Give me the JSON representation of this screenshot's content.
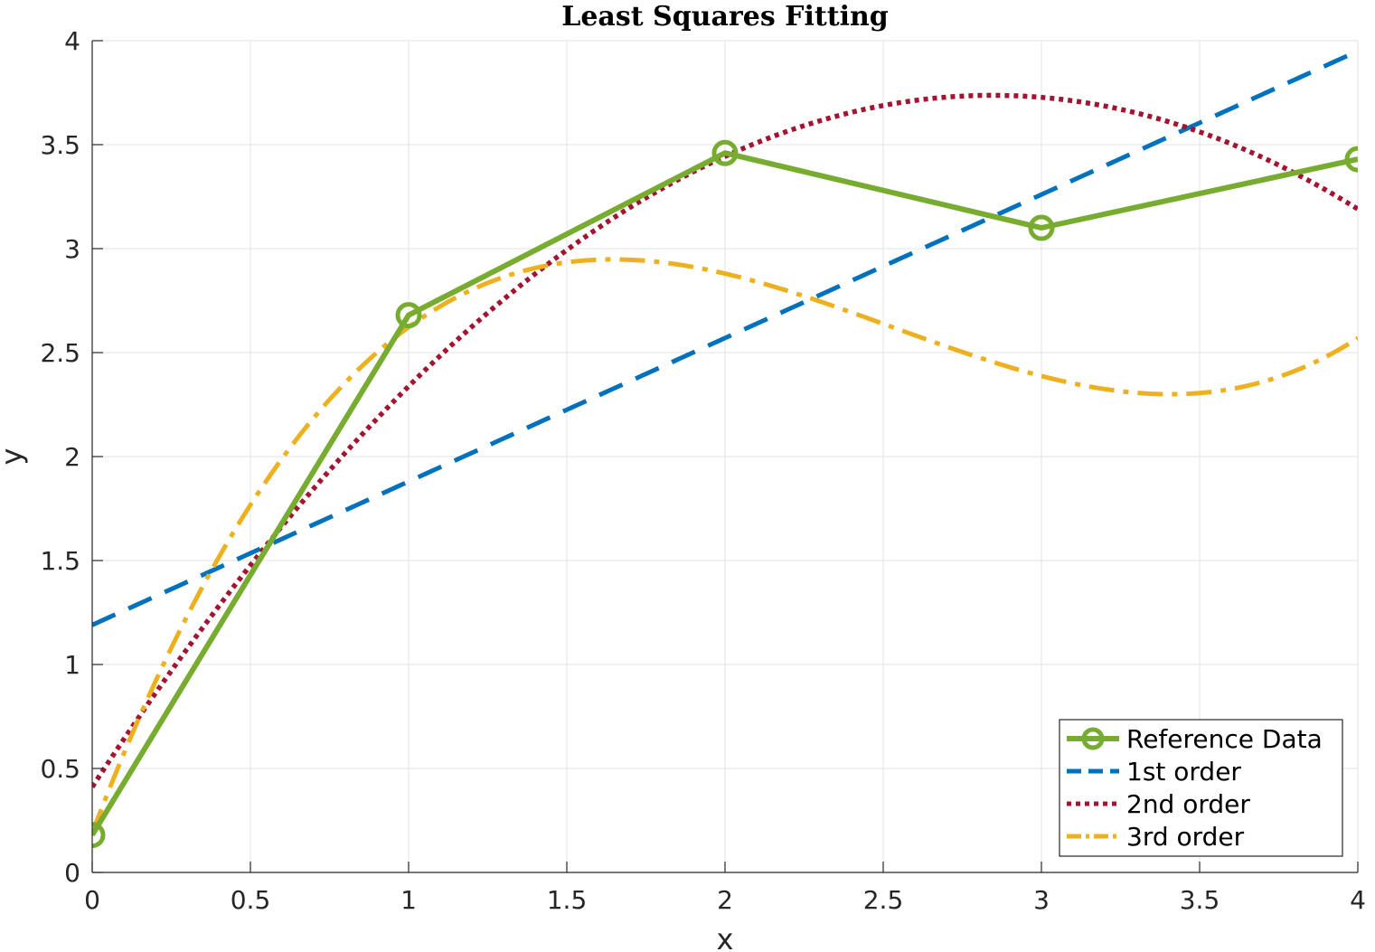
{
  "chart_data": {
    "type": "line",
    "title": "Least Squares Fitting",
    "xlabel": "x",
    "ylabel": "y",
    "xlim": [
      0,
      4
    ],
    "ylim": [
      0,
      4
    ],
    "xticks": [
      0,
      0.5,
      1,
      1.5,
      2,
      2.5,
      3,
      3.5,
      4
    ],
    "xtick_labels": [
      "0",
      "0.5",
      "1",
      "1.5",
      "2",
      "2.5",
      "3",
      "3.5",
      "4"
    ],
    "yticks": [
      0,
      0.5,
      1,
      1.5,
      2,
      2.5,
      3,
      3.5,
      4
    ],
    "ytick_labels": [
      "0",
      "0.5",
      "1",
      "1.5",
      "2",
      "2.5",
      "3",
      "3.5",
      "4"
    ],
    "grid": true,
    "legend_position": "bottom-right",
    "series": [
      {
        "name": "Reference Data",
        "style": "solid-marker",
        "color": "#77AC30",
        "x": [
          0,
          1,
          2,
          3,
          4
        ],
        "y": [
          0.18,
          2.68,
          3.46,
          3.1,
          3.43
        ]
      },
      {
        "name": "1st order",
        "style": "dashed",
        "color": "#0072BD",
        "coefficients": [
          1.19,
          0.69
        ]
      },
      {
        "name": "2nd order",
        "style": "dotted",
        "color": "#A2142F",
        "coefficients": [
          0.411,
          2.3376,
          -0.4107
        ]
      },
      {
        "name": "3rd order",
        "style": "dashdot",
        "color": "#EDB120",
        "coefficients": [
          0.19,
          3.995,
          -1.8,
          0.2375
        ]
      }
    ]
  }
}
